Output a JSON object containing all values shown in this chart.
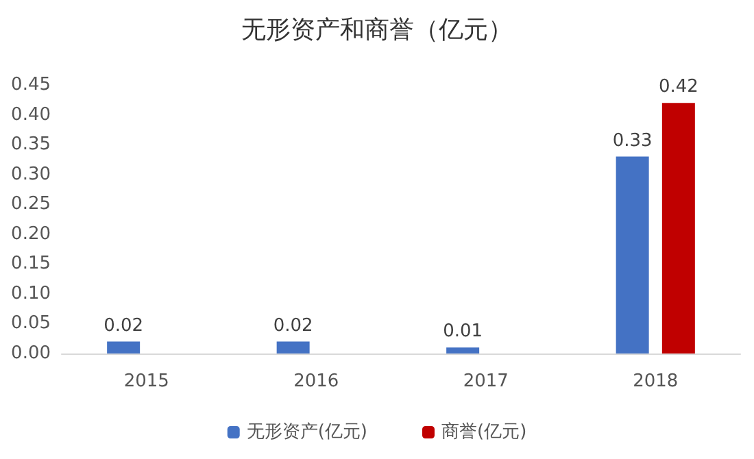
{
  "chart_data": {
    "type": "bar",
    "title": "无形资产和商誉（亿元）",
    "categories": [
      "2015",
      "2016",
      "2017",
      "2018"
    ],
    "series": [
      {
        "name": "无形资产(亿元)",
        "color": "#4472c4",
        "values": [
          0.02,
          0.02,
          0.01,
          0.33
        ]
      },
      {
        "name": "商誉(亿元)",
        "color": "#c00000",
        "values": [
          null,
          null,
          null,
          0.42
        ]
      }
    ],
    "ylim": [
      0,
      0.45
    ],
    "yticks": [
      {
        "value": 0,
        "label": "0.00"
      },
      {
        "value": 0.05,
        "label": "0.05"
      },
      {
        "value": 0.1,
        "label": "0.10"
      },
      {
        "value": 0.15,
        "label": "0.15"
      },
      {
        "value": 0.2,
        "label": "0.20"
      },
      {
        "value": 0.25,
        "label": "0.25"
      },
      {
        "value": 0.3,
        "label": "0.30"
      },
      {
        "value": 0.35,
        "label": "0.35"
      },
      {
        "value": 0.4,
        "label": "0.40"
      },
      {
        "value": 0.45,
        "label": "0.45"
      }
    ],
    "grid": false,
    "legend": "bottom",
    "data_labels": true
  }
}
